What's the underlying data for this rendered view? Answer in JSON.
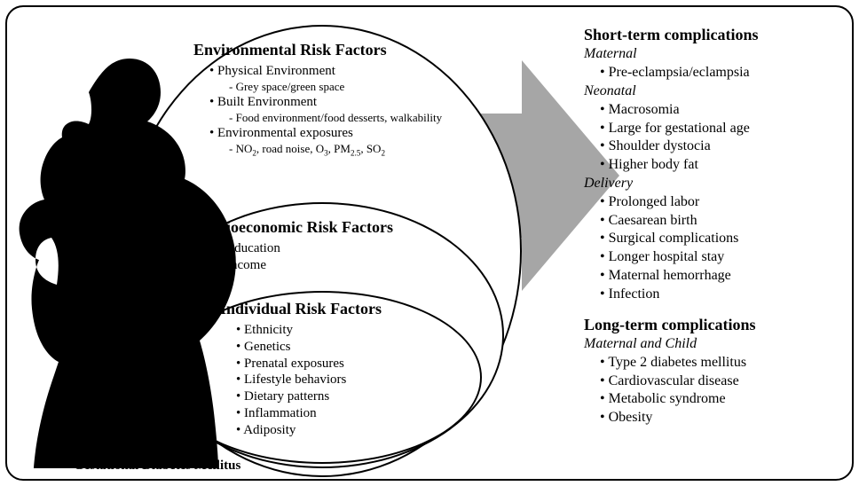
{
  "caption": "Gestational Diabetes Mellitus",
  "colors": {
    "border": "#000000",
    "background": "#ffffff",
    "arrow_fill": "#a6a6a6",
    "silhouette_fill": "#000000"
  },
  "ellipses": {
    "outer": {
      "title": "Environmental Risk Factors"
    },
    "middle": {
      "title": "Socioeconomic Risk Factors"
    },
    "inner": {
      "title": "Individual Risk Factors"
    }
  },
  "environmental": {
    "items": [
      {
        "label": "Physical Environment",
        "sub": "Grey space/green space"
      },
      {
        "label": "Built Environment",
        "sub": "Food environment/food desserts, walkability"
      },
      {
        "label": "Environmental exposures",
        "sub_html": "NO<sub>2</sub>, road noise, O<sub>3</sub>, PM<sub>2.5</sub>, SO<sub>2</sub>"
      }
    ]
  },
  "socioeconomic": {
    "items": [
      "Education",
      "Income"
    ]
  },
  "individual": {
    "items": [
      "Ethnicity",
      "Genetics",
      "Prenatal exposures",
      "Lifestyle behaviors",
      "Dietary patterns",
      "Inflammation",
      "Adiposity"
    ]
  },
  "complications": {
    "short_term": {
      "heading": "Short-term complications",
      "groups": [
        {
          "subhead": "Maternal",
          "items": [
            "Pre-eclampsia/eclampsia"
          ]
        },
        {
          "subhead": "Neonatal",
          "items": [
            "Macrosomia",
            "Large for gestational age",
            "Shoulder dystocia",
            "Higher body fat"
          ]
        },
        {
          "subhead": "Delivery",
          "items": [
            "Prolonged labor",
            "Caesarean birth",
            "Surgical complications",
            "Longer hospital stay",
            "Maternal hemorrhage",
            "Infection"
          ]
        }
      ]
    },
    "long_term": {
      "heading": "Long-term complications",
      "groups": [
        {
          "subhead": "Maternal and Child",
          "items": [
            "Type 2 diabetes mellitus",
            "Cardiovascular disease",
            "Metabolic syndrome",
            "Obesity"
          ]
        }
      ]
    }
  }
}
